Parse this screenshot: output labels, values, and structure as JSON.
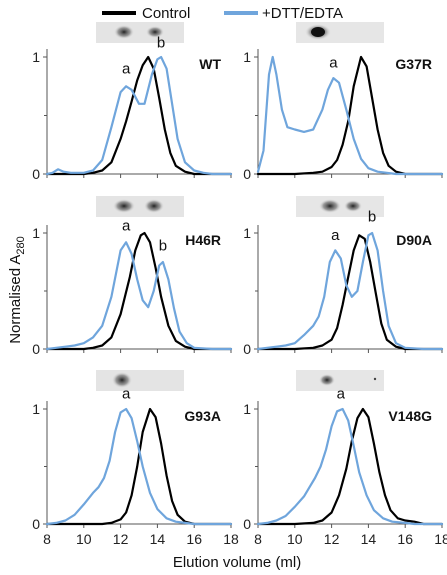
{
  "legend": {
    "control": {
      "label": "Control",
      "color": "#000000"
    },
    "treated": {
      "label": "+DTT/EDTA",
      "color": "#6fa5dc"
    }
  },
  "axes": {
    "ylabel_main": "Normalised A",
    "ylabel_sub": "280",
    "xlabel": "Elution volume (ml)",
    "xticks": [
      "8",
      "10",
      "12",
      "14",
      "16",
      "18"
    ],
    "yticks": [
      "0",
      "1"
    ],
    "xlim": [
      8,
      18
    ],
    "ylim": [
      0,
      1
    ]
  },
  "chart_data": [
    {
      "type": "line",
      "title": "WT",
      "series": [
        {
          "name": "Control",
          "x": [
            8,
            9,
            10,
            10.5,
            11,
            11.5,
            12,
            12.3,
            12.6,
            12.9,
            13.2,
            13.5,
            13.8,
            14.1,
            14.4,
            14.7,
            15,
            15.5,
            16,
            17,
            18
          ],
          "values": [
            0,
            0,
            0,
            0.01,
            0.03,
            0.1,
            0.3,
            0.45,
            0.62,
            0.8,
            0.93,
            1.0,
            0.9,
            0.65,
            0.38,
            0.18,
            0.07,
            0.02,
            0,
            0,
            0
          ]
        },
        {
          "name": "+DTT/EDTA",
          "x": [
            8,
            8.3,
            8.6,
            8.9,
            9.3,
            10,
            10.5,
            11,
            11.5,
            12,
            12.3,
            12.6,
            13,
            13.3,
            13.7,
            14,
            14.2,
            14.5,
            14.8,
            15.1,
            15.5,
            16,
            16.5,
            17,
            18
          ],
          "values": [
            0,
            0.01,
            0.04,
            0.02,
            0.01,
            0.01,
            0.03,
            0.12,
            0.4,
            0.7,
            0.75,
            0.72,
            0.6,
            0.6,
            0.85,
            0.98,
            1.0,
            0.9,
            0.6,
            0.3,
            0.1,
            0.03,
            0.01,
            0,
            0
          ]
        }
      ],
      "peak_labels": [
        {
          "text": "a",
          "x": 12.3,
          "y": 0.86
        },
        {
          "text": "b",
          "x": 14.2,
          "y": 1.08
        }
      ]
    },
    {
      "type": "line",
      "title": "G37R",
      "series": [
        {
          "name": "Control",
          "x": [
            8,
            10,
            11,
            11.5,
            12,
            12.3,
            12.6,
            12.9,
            13.2,
            13.6,
            13.9,
            14.2,
            14.5,
            14.8,
            15.1,
            15.5,
            16,
            17,
            18
          ],
          "values": [
            0,
            0,
            0.01,
            0.02,
            0.06,
            0.12,
            0.25,
            0.45,
            0.75,
            1.0,
            0.92,
            0.65,
            0.38,
            0.18,
            0.07,
            0.02,
            0,
            0,
            0
          ]
        },
        {
          "name": "+DTT/EDTA",
          "x": [
            8,
            8.3,
            8.6,
            8.8,
            9,
            9.3,
            9.6,
            10,
            10.5,
            11,
            11.5,
            11.8,
            12.1,
            12.4,
            12.8,
            13.2,
            13.6,
            14,
            14.5,
            15,
            15.5,
            16,
            17,
            18
          ],
          "values": [
            0.02,
            0.2,
            0.85,
            1.0,
            0.85,
            0.55,
            0.4,
            0.38,
            0.36,
            0.38,
            0.55,
            0.72,
            0.82,
            0.78,
            0.55,
            0.3,
            0.13,
            0.05,
            0.02,
            0.01,
            0,
            0,
            0,
            0
          ]
        }
      ],
      "peak_labels": [
        {
          "text": "a",
          "x": 12.1,
          "y": 0.91
        }
      ]
    },
    {
      "type": "line",
      "title": "H46R",
      "series": [
        {
          "name": "Control",
          "x": [
            8,
            10,
            10.5,
            11,
            11.5,
            12,
            12.5,
            12.8,
            13.1,
            13.3,
            13.6,
            13.9,
            14.2,
            14.6,
            15,
            15.5,
            16,
            17,
            18
          ],
          "values": [
            0,
            0,
            0.01,
            0.03,
            0.1,
            0.3,
            0.62,
            0.85,
            0.98,
            1.0,
            0.92,
            0.7,
            0.45,
            0.2,
            0.07,
            0.02,
            0,
            0,
            0
          ]
        },
        {
          "name": "+DTT/EDTA",
          "x": [
            8,
            8.5,
            9,
            9.5,
            10,
            10.5,
            11,
            11.5,
            12,
            12.3,
            12.6,
            12.9,
            13.2,
            13.5,
            13.8,
            14.1,
            14.3,
            14.6,
            14.9,
            15.2,
            15.6,
            16,
            17,
            18
          ],
          "values": [
            0,
            0.01,
            0.02,
            0.03,
            0.05,
            0.1,
            0.2,
            0.45,
            0.85,
            0.92,
            0.82,
            0.6,
            0.42,
            0.36,
            0.5,
            0.72,
            0.75,
            0.6,
            0.35,
            0.15,
            0.05,
            0.01,
            0,
            0
          ]
        }
      ],
      "peak_labels": [
        {
          "text": "a",
          "x": 12.3,
          "y": 1.02
        },
        {
          "text": "b",
          "x": 14.3,
          "y": 0.85
        }
      ]
    },
    {
      "type": "line",
      "title": "D90A",
      "series": [
        {
          "name": "Control",
          "x": [
            8,
            10,
            11,
            11.5,
            12,
            12.3,
            12.6,
            12.9,
            13.2,
            13.5,
            13.8,
            14.1,
            14.4,
            14.7,
            15,
            15.5,
            16,
            17,
            18
          ],
          "values": [
            0,
            0,
            0.01,
            0.03,
            0.08,
            0.18,
            0.38,
            0.62,
            0.85,
            0.98,
            0.95,
            0.75,
            0.48,
            0.22,
            0.08,
            0.02,
            0,
            0,
            0
          ]
        },
        {
          "name": "+DTT/EDTA",
          "x": [
            8,
            8.5,
            9,
            9.5,
            10,
            10.5,
            11,
            11.3,
            11.6,
            11.9,
            12.2,
            12.5,
            12.8,
            13.1,
            13.4,
            13.7,
            14,
            14.2,
            14.5,
            14.8,
            15.1,
            15.5,
            16,
            17,
            18
          ],
          "values": [
            0,
            0.01,
            0.02,
            0.03,
            0.05,
            0.12,
            0.2,
            0.28,
            0.45,
            0.75,
            0.85,
            0.78,
            0.55,
            0.45,
            0.5,
            0.75,
            0.98,
            1.0,
            0.85,
            0.5,
            0.2,
            0.05,
            0.01,
            0,
            0
          ]
        }
      ],
      "peak_labels": [
        {
          "text": "a",
          "x": 12.2,
          "y": 0.94
        },
        {
          "text": "b",
          "x": 14.2,
          "y": 1.1
        }
      ]
    },
    {
      "type": "line",
      "title": "G93A",
      "series": [
        {
          "name": "Control",
          "x": [
            8,
            10,
            11,
            11.5,
            12,
            12.3,
            12.6,
            12.9,
            13.2,
            13.6,
            13.9,
            14.2,
            14.5,
            14.8,
            15.1,
            15.5,
            16,
            17,
            18
          ],
          "values": [
            0,
            0,
            0,
            0.01,
            0.04,
            0.1,
            0.25,
            0.5,
            0.8,
            1.0,
            0.93,
            0.7,
            0.42,
            0.2,
            0.08,
            0.02,
            0,
            0,
            0
          ]
        },
        {
          "name": "+DTT/EDTA",
          "x": [
            8,
            8.5,
            9,
            9.5,
            10,
            10.5,
            10.8,
            11.1,
            11.4,
            11.7,
            12,
            12.3,
            12.6,
            12.9,
            13.2,
            13.6,
            14,
            14.5,
            15,
            15.5,
            16,
            16.5,
            17,
            18
          ],
          "values": [
            0,
            0.01,
            0.03,
            0.08,
            0.17,
            0.27,
            0.32,
            0.4,
            0.55,
            0.8,
            0.97,
            1.0,
            0.92,
            0.72,
            0.5,
            0.27,
            0.13,
            0.05,
            0.02,
            0.01,
            0,
            0,
            0,
            0
          ]
        }
      ],
      "peak_labels": [
        {
          "text": "a",
          "x": 12.3,
          "y": 1.09
        }
      ]
    },
    {
      "type": "line",
      "title": "V148G",
      "series": [
        {
          "name": "Control",
          "x": [
            8,
            10,
            11,
            11.5,
            12,
            12.4,
            12.8,
            13.1,
            13.4,
            13.7,
            14,
            14.3,
            14.6,
            14.9,
            15.2,
            15.6,
            16,
            16.5,
            17,
            18
          ],
          "values": [
            0,
            0,
            0.01,
            0.03,
            0.1,
            0.25,
            0.48,
            0.72,
            0.92,
            1.0,
            0.93,
            0.7,
            0.45,
            0.25,
            0.12,
            0.05,
            0.03,
            0.02,
            0,
            0
          ]
        },
        {
          "name": "+DTT/EDTA",
          "x": [
            8,
            8.5,
            9,
            9.5,
            10,
            10.5,
            10.8,
            11.1,
            11.4,
            11.7,
            12,
            12.3,
            12.6,
            12.9,
            13.2,
            13.5,
            13.9,
            14.3,
            14.8,
            15.3,
            16,
            16.5,
            17,
            18
          ],
          "values": [
            0,
            0.01,
            0.03,
            0.07,
            0.15,
            0.24,
            0.32,
            0.4,
            0.5,
            0.65,
            0.85,
            0.98,
            1.0,
            0.9,
            0.68,
            0.45,
            0.25,
            0.12,
            0.05,
            0.02,
            0.01,
            0,
            0,
            0
          ]
        }
      ],
      "peak_labels": [
        {
          "text": "a",
          "x": 12.5,
          "y": 1.09
        }
      ]
    }
  ]
}
